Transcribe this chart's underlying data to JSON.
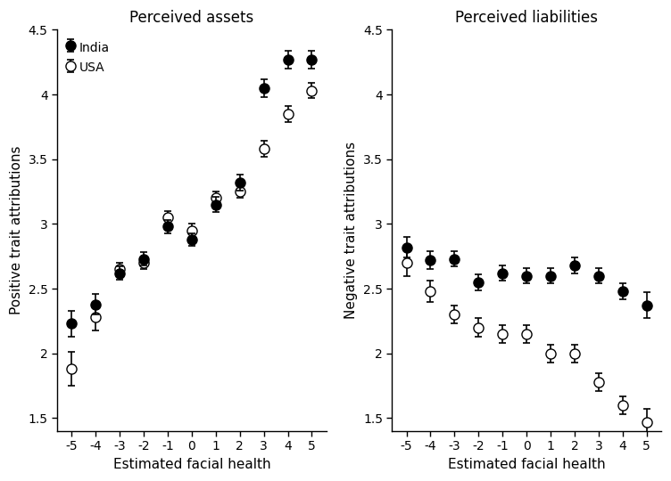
{
  "x": [
    -5,
    -4,
    -3,
    -2,
    -1,
    0,
    1,
    2,
    3,
    4,
    5
  ],
  "assets_india_y": [
    2.23,
    2.38,
    2.62,
    2.73,
    2.98,
    2.88,
    3.15,
    3.32,
    4.05,
    4.27,
    4.27
  ],
  "assets_india_err": [
    0.1,
    0.08,
    0.05,
    0.05,
    0.05,
    0.05,
    0.06,
    0.06,
    0.07,
    0.07,
    0.07
  ],
  "assets_usa_y": [
    1.88,
    2.28,
    2.65,
    2.7,
    3.05,
    2.95,
    3.2,
    3.25,
    3.58,
    3.85,
    4.03
  ],
  "assets_usa_err": [
    0.13,
    0.1,
    0.05,
    0.05,
    0.05,
    0.05,
    0.05,
    0.05,
    0.06,
    0.06,
    0.06
  ],
  "liab_india_y": [
    2.82,
    2.72,
    2.73,
    2.55,
    2.62,
    2.6,
    2.6,
    2.68,
    2.6,
    2.48,
    2.37
  ],
  "liab_india_err": [
    0.08,
    0.07,
    0.06,
    0.06,
    0.06,
    0.06,
    0.06,
    0.06,
    0.06,
    0.06,
    0.1
  ],
  "liab_usa_y": [
    2.7,
    2.48,
    2.3,
    2.2,
    2.15,
    2.15,
    2.0,
    2.0,
    1.78,
    1.6,
    1.47
  ],
  "liab_usa_err": [
    0.1,
    0.08,
    0.07,
    0.07,
    0.07,
    0.07,
    0.07,
    0.07,
    0.07,
    0.07,
    0.1
  ],
  "title_assets": "Perceived assets",
  "title_liab": "Perceived liabilities",
  "xlabel": "Estimated facial health",
  "ylabel_assets": "Positive trait attributions",
  "ylabel_liab": "Negative trait attributions",
  "ylim": [
    1.4,
    4.5
  ],
  "yticks": [
    1.5,
    2.0,
    2.5,
    3.0,
    3.5,
    4.0,
    4.5
  ],
  "legend_india": "India",
  "legend_usa": "USA",
  "marker_size": 8,
  "lw_err": 1.2,
  "capsize": 3,
  "xlim": [
    -5.6,
    5.6
  ]
}
